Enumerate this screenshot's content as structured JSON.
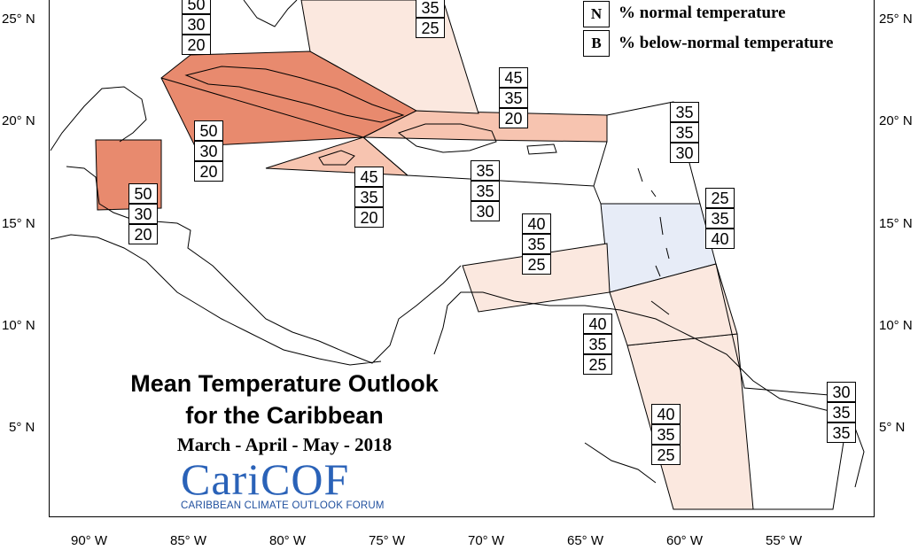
{
  "map": {
    "title_line1": "Mean Temperature Outlook",
    "title_line2": "for the Caribbean",
    "subtitle": "March - April - May - 2018",
    "logo_text": "CariCOF",
    "logo_subtitle": "CARIBBEAN CLIMATE OUTLOOK FORUM",
    "colors": {
      "above_strong": "#e88a6e",
      "above_moderate": "#f7c4b0",
      "above_weak": "#fbe8df",
      "below_weak": "#e7ecf7",
      "normal": "#ffffff"
    }
  },
  "legend": [
    {
      "key": "N",
      "text": "% normal temperature"
    },
    {
      "key": "B",
      "text": "% below-normal temperature"
    }
  ],
  "axes": {
    "lon_labels": [
      "90° W",
      "85° W",
      "80° W",
      "75° W",
      "70° W",
      "65° W",
      "60° W",
      "55° W"
    ],
    "lat_labels": [
      "25° N",
      "20° N",
      "15° N",
      "10° N",
      "5° N"
    ]
  },
  "regions": [
    {
      "name": "bahamas-north",
      "values": [
        "35",
        "25"
      ]
    },
    {
      "name": "bahamas-west",
      "values": [
        "50",
        "30",
        "20"
      ]
    },
    {
      "name": "cuba",
      "values": [
        "50",
        "30",
        "20"
      ]
    },
    {
      "name": "belize",
      "values": [
        "50",
        "30",
        "20"
      ]
    },
    {
      "name": "jamaica",
      "values": [
        "45",
        "35",
        "20"
      ]
    },
    {
      "name": "turks-caicos",
      "values": [
        "45",
        "35",
        "20"
      ]
    },
    {
      "name": "hispaniola",
      "values": [
        "35",
        "35",
        "30"
      ]
    },
    {
      "name": "leeward-north",
      "values": [
        "35",
        "35",
        "30"
      ]
    },
    {
      "name": "windward",
      "values": [
        "25",
        "35",
        "40"
      ]
    },
    {
      "name": "abc-islands",
      "values": [
        "40",
        "35",
        "25"
      ]
    },
    {
      "name": "trinidad",
      "values": [
        "40",
        "35",
        "25"
      ]
    },
    {
      "name": "guyana",
      "values": [
        "40",
        "35",
        "25"
      ]
    },
    {
      "name": "french-guiana",
      "values": [
        "30",
        "35",
        "35"
      ]
    }
  ]
}
